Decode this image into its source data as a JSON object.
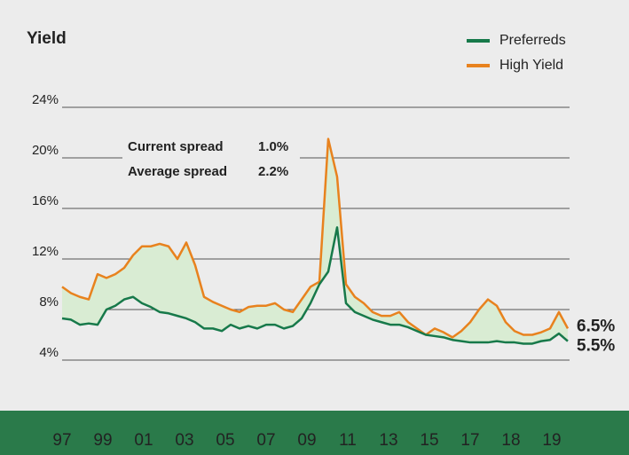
{
  "chart_data": {
    "type": "line",
    "title": "Yield",
    "x_labels": [
      "97",
      "99",
      "01",
      "03",
      "05",
      "07",
      "09",
      "11",
      "13",
      "15",
      "17",
      "18",
      "19"
    ],
    "ylim": [
      4,
      24
    ],
    "yticks": [
      {
        "value": 4,
        "label": "4%"
      },
      {
        "value": 8,
        "label": "8%"
      },
      {
        "value": 12,
        "label": "12%"
      },
      {
        "value": 16,
        "label": "16%"
      },
      {
        "value": 20,
        "label": "20%"
      },
      {
        "value": 24,
        "label": "24%"
      }
    ],
    "grid": true,
    "legend": "top-right",
    "fill_between": "#d9ecd3",
    "annotations": [
      {
        "label": "Current spread",
        "value_label": "1.0%"
      },
      {
        "label": "Average spread",
        "value_label": "2.2%"
      }
    ],
    "series": [
      {
        "name": "Preferreds",
        "color": "#17794a",
        "end_label": "5.5%",
        "values": [
          7.3,
          7.2,
          6.8,
          6.9,
          6.8,
          8.0,
          8.3,
          8.8,
          9.0,
          8.5,
          8.2,
          7.8,
          7.7,
          7.5,
          7.3,
          7.0,
          6.5,
          6.5,
          6.3,
          6.8,
          6.5,
          6.7,
          6.5,
          6.8,
          6.8,
          6.5,
          6.7,
          7.3,
          8.5,
          10.0,
          11.0,
          14.5,
          8.5,
          7.8,
          7.5,
          7.2,
          7.0,
          6.8,
          6.8,
          6.6,
          6.3,
          6.0,
          5.9,
          5.8,
          5.6,
          5.5,
          5.4,
          5.4,
          5.4,
          5.5,
          5.4,
          5.4,
          5.3,
          5.3,
          5.5,
          5.6,
          6.1,
          5.5
        ]
      },
      {
        "name": "High Yield",
        "color": "#e8821e",
        "end_label": "6.5%",
        "values": [
          9.8,
          9.3,
          9.0,
          8.8,
          10.8,
          10.5,
          10.8,
          11.3,
          12.3,
          13.0,
          13.0,
          13.2,
          13.0,
          12.0,
          13.3,
          11.5,
          9.0,
          8.6,
          8.3,
          8.0,
          7.8,
          8.2,
          8.3,
          8.3,
          8.5,
          8.0,
          7.8,
          8.8,
          9.8,
          10.2,
          21.5,
          18.5,
          10.0,
          9.0,
          8.5,
          7.8,
          7.5,
          7.5,
          7.8,
          7.0,
          6.5,
          6.0,
          6.5,
          6.2,
          5.8,
          6.3,
          7.0,
          8.0,
          8.8,
          8.3,
          7.0,
          6.3,
          6.0,
          6.0,
          6.2,
          6.5,
          7.8,
          6.5
        ]
      }
    ]
  }
}
